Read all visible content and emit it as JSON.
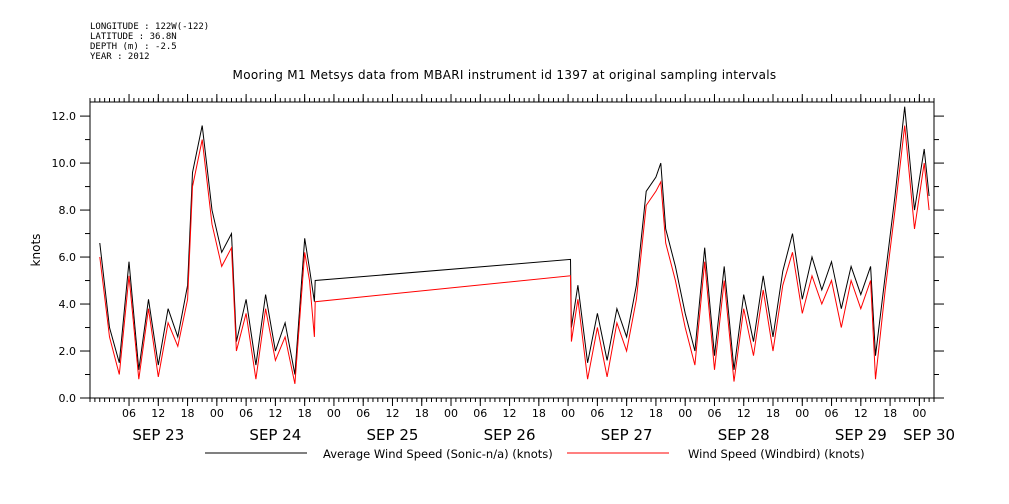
{
  "metadata": {
    "longitude": "LONGITUDE : 122W(-122)",
    "latitude": "LATITUDE : 36.8N",
    "depth": "DEPTH (m) : -2.5",
    "year": "YEAR : 2012"
  },
  "chart_data": {
    "type": "line",
    "title": "Mooring M1 Metsys data from MBARI instrument id 1397 at original sampling intervals",
    "ylabel": "knots",
    "xlabel": "",
    "ylim": [
      0,
      12.6
    ],
    "yticks": [
      "0.0",
      "2.0",
      "4.0",
      "6.0",
      "8.0",
      "10.0",
      "12.0"
    ],
    "xlim": [
      "2012-09-22 22:00",
      "2012-09-30 03:00"
    ],
    "hour_ticks": [
      "06",
      "12",
      "18",
      "00",
      "06",
      "12",
      "18",
      "00",
      "06",
      "12",
      "18",
      "00",
      "06",
      "12",
      "18",
      "00",
      "06",
      "12",
      "18",
      "00",
      "06",
      "12",
      "18",
      "00",
      "06",
      "12",
      "18",
      "00",
      "06",
      "12",
      "18",
      "00"
    ],
    "day_labels": [
      "SEP 23",
      "SEP 24",
      "SEP 25",
      "SEP 26",
      "SEP 27",
      "SEP 28",
      "SEP 29",
      "SEP 30"
    ],
    "grid": false,
    "legend_position": "bottom",
    "series": [
      {
        "name": "Average Wind Speed (Sonic-n/a) (knots)",
        "color": "#000000",
        "points": [
          [
            "2012-09-23 00:00",
            6.6
          ],
          [
            "2012-09-23 02:00",
            3.0
          ],
          [
            "2012-09-23 04:00",
            1.5
          ],
          [
            "2012-09-23 06:00",
            5.8
          ],
          [
            "2012-09-23 08:00",
            1.2
          ],
          [
            "2012-09-23 10:00",
            4.2
          ],
          [
            "2012-09-23 12:00",
            1.4
          ],
          [
            "2012-09-23 14:00",
            3.8
          ],
          [
            "2012-09-23 16:00",
            2.6
          ],
          [
            "2012-09-23 18:00",
            4.8
          ],
          [
            "2012-09-23 19:00",
            9.6
          ],
          [
            "2012-09-23 21:00",
            11.6
          ],
          [
            "2012-09-23 23:00",
            8.0
          ],
          [
            "2012-09-24 01:00",
            6.2
          ],
          [
            "2012-09-24 03:00",
            7.0
          ],
          [
            "2012-09-24 04:00",
            2.4
          ],
          [
            "2012-09-24 06:00",
            4.2
          ],
          [
            "2012-09-24 08:00",
            1.4
          ],
          [
            "2012-09-24 10:00",
            4.4
          ],
          [
            "2012-09-24 12:00",
            2.0
          ],
          [
            "2012-09-24 14:00",
            3.2
          ],
          [
            "2012-09-24 16:00",
            1.0
          ],
          [
            "2012-09-24 18:00",
            6.8
          ],
          [
            "2012-09-24 19:00",
            5.5
          ],
          [
            "2012-09-24 20:00",
            4.1
          ],
          [
            "2012-09-24 20:10",
            5.0
          ],
          [
            "2012-09-27 00:30",
            5.9
          ],
          [
            "2012-09-27 00:40",
            3.0
          ],
          [
            "2012-09-27 02:00",
            4.8
          ],
          [
            "2012-09-27 04:00",
            1.5
          ],
          [
            "2012-09-27 06:00",
            3.6
          ],
          [
            "2012-09-27 08:00",
            1.6
          ],
          [
            "2012-09-27 10:00",
            3.8
          ],
          [
            "2012-09-27 12:00",
            2.6
          ],
          [
            "2012-09-27 14:00",
            4.8
          ],
          [
            "2012-09-27 16:00",
            8.8
          ],
          [
            "2012-09-27 18:00",
            9.4
          ],
          [
            "2012-09-27 19:00",
            10.0
          ],
          [
            "2012-09-27 20:00",
            7.2
          ],
          [
            "2012-09-27 22:00",
            5.6
          ],
          [
            "2012-09-28 00:00",
            3.6
          ],
          [
            "2012-09-28 02:00",
            2.0
          ],
          [
            "2012-09-28 04:00",
            6.4
          ],
          [
            "2012-09-28 06:00",
            1.8
          ],
          [
            "2012-09-28 08:00",
            5.6
          ],
          [
            "2012-09-28 10:00",
            1.2
          ],
          [
            "2012-09-28 12:00",
            4.4
          ],
          [
            "2012-09-28 14:00",
            2.4
          ],
          [
            "2012-09-28 16:00",
            5.2
          ],
          [
            "2012-09-28 18:00",
            2.6
          ],
          [
            "2012-09-28 20:00",
            5.4
          ],
          [
            "2012-09-28 22:00",
            7.0
          ],
          [
            "2012-09-29 00:00",
            4.2
          ],
          [
            "2012-09-29 02:00",
            6.0
          ],
          [
            "2012-09-29 04:00",
            4.6
          ],
          [
            "2012-09-29 06:00",
            5.8
          ],
          [
            "2012-09-29 08:00",
            3.8
          ],
          [
            "2012-09-29 10:00",
            5.6
          ],
          [
            "2012-09-29 12:00",
            4.4
          ],
          [
            "2012-09-29 14:00",
            5.6
          ],
          [
            "2012-09-29 15:00",
            1.8
          ],
          [
            "2012-09-29 17:00",
            5.2
          ],
          [
            "2012-09-29 19:00",
            8.6
          ],
          [
            "2012-09-29 21:00",
            12.4
          ],
          [
            "2012-09-29 23:00",
            8.0
          ],
          [
            "2012-09-30 01:00",
            10.6
          ],
          [
            "2012-09-30 02:00",
            8.6
          ]
        ]
      },
      {
        "name": "Wind Speed (Windbird) (knots)",
        "color": "#ff0000",
        "points": [
          [
            "2012-09-23 00:00",
            6.0
          ],
          [
            "2012-09-23 02:00",
            2.6
          ],
          [
            "2012-09-23 04:00",
            1.0
          ],
          [
            "2012-09-23 06:00",
            5.2
          ],
          [
            "2012-09-23 08:00",
            0.8
          ],
          [
            "2012-09-23 10:00",
            3.8
          ],
          [
            "2012-09-23 12:00",
            0.9
          ],
          [
            "2012-09-23 14:00",
            3.2
          ],
          [
            "2012-09-23 16:00",
            2.2
          ],
          [
            "2012-09-23 18:00",
            4.2
          ],
          [
            "2012-09-23 19:00",
            9.0
          ],
          [
            "2012-09-23 21:00",
            11.0
          ],
          [
            "2012-09-23 23:00",
            7.4
          ],
          [
            "2012-09-24 01:00",
            5.6
          ],
          [
            "2012-09-24 03:00",
            6.4
          ],
          [
            "2012-09-24 04:00",
            2.0
          ],
          [
            "2012-09-24 06:00",
            3.6
          ],
          [
            "2012-09-24 08:00",
            0.8
          ],
          [
            "2012-09-24 10:00",
            3.8
          ],
          [
            "2012-09-24 12:00",
            1.6
          ],
          [
            "2012-09-24 14:00",
            2.6
          ],
          [
            "2012-09-24 16:00",
            0.6
          ],
          [
            "2012-09-24 18:00",
            6.2
          ],
          [
            "2012-09-24 19:00",
            5.0
          ],
          [
            "2012-09-24 20:00",
            2.6
          ],
          [
            "2012-09-24 20:10",
            4.1
          ],
          [
            "2012-09-27 00:30",
            5.2
          ],
          [
            "2012-09-27 00:40",
            2.4
          ],
          [
            "2012-09-27 02:00",
            4.2
          ],
          [
            "2012-09-27 04:00",
            0.8
          ],
          [
            "2012-09-27 06:00",
            3.0
          ],
          [
            "2012-09-27 08:00",
            0.9
          ],
          [
            "2012-09-27 10:00",
            3.2
          ],
          [
            "2012-09-27 12:00",
            2.0
          ],
          [
            "2012-09-27 14:00",
            4.2
          ],
          [
            "2012-09-27 16:00",
            8.2
          ],
          [
            "2012-09-27 18:00",
            8.8
          ],
          [
            "2012-09-27 19:00",
            9.2
          ],
          [
            "2012-09-27 20:00",
            6.6
          ],
          [
            "2012-09-27 22:00",
            5.0
          ],
          [
            "2012-09-28 00:00",
            3.0
          ],
          [
            "2012-09-28 02:00",
            1.4
          ],
          [
            "2012-09-28 04:00",
            5.8
          ],
          [
            "2012-09-28 06:00",
            1.2
          ],
          [
            "2012-09-28 08:00",
            5.0
          ],
          [
            "2012-09-28 10:00",
            0.7
          ],
          [
            "2012-09-28 12:00",
            3.8
          ],
          [
            "2012-09-28 14:00",
            1.8
          ],
          [
            "2012-09-28 16:00",
            4.6
          ],
          [
            "2012-09-28 18:00",
            2.0
          ],
          [
            "2012-09-28 20:00",
            4.8
          ],
          [
            "2012-09-28 22:00",
            6.2
          ],
          [
            "2012-09-29 00:00",
            3.6
          ],
          [
            "2012-09-29 02:00",
            5.2
          ],
          [
            "2012-09-29 04:00",
            4.0
          ],
          [
            "2012-09-29 06:00",
            5.0
          ],
          [
            "2012-09-29 08:00",
            3.0
          ],
          [
            "2012-09-29 10:00",
            5.0
          ],
          [
            "2012-09-29 12:00",
            3.8
          ],
          [
            "2012-09-29 14:00",
            5.0
          ],
          [
            "2012-09-29 15:00",
            0.8
          ],
          [
            "2012-09-29 17:00",
            4.6
          ],
          [
            "2012-09-29 19:00",
            8.0
          ],
          [
            "2012-09-29 21:00",
            11.6
          ],
          [
            "2012-09-29 23:00",
            7.2
          ],
          [
            "2012-09-30 01:00",
            10.0
          ],
          [
            "2012-09-30 02:00",
            8.0
          ]
        ]
      }
    ]
  }
}
